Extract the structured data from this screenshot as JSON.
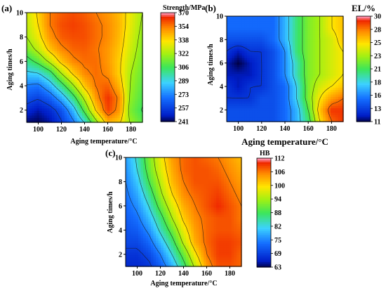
{
  "chart_data": [
    {
      "type": "heatmap",
      "panel_label": "(a)",
      "title": "Strength/MPa",
      "xlabel": "Aging temperature/°C",
      "ylabel": "Aging times/h",
      "xlim": [
        90,
        190
      ],
      "ylim": [
        1,
        10
      ],
      "xticks": [
        "100",
        "120",
        "140",
        "160",
        "180"
      ],
      "yticks": [
        "2",
        "4",
        "6",
        "8",
        "10"
      ],
      "colorbar": {
        "min": 241,
        "max": 370,
        "ticks": [
          "370",
          "354",
          "338",
          "322",
          "306",
          "289",
          "273",
          "257",
          "241"
        ]
      },
      "x": [
        90,
        100,
        110,
        120,
        130,
        140,
        150,
        160,
        170,
        180,
        190
      ],
      "y": [
        1,
        2,
        3,
        4,
        5,
        6,
        7,
        8,
        9,
        10
      ],
      "z": [
        [
          243,
          242,
          246,
          256,
          270,
          290,
          318,
          345,
          340,
          320,
          310
        ],
        [
          252,
          247,
          252,
          262,
          282,
          310,
          340,
          362,
          350,
          315,
          305
        ],
        [
          262,
          258,
          265,
          280,
          300,
          325,
          350,
          364,
          352,
          318,
          308
        ],
        [
          272,
          270,
          282,
          300,
          320,
          342,
          355,
          358,
          345,
          320,
          310
        ],
        [
          286,
          288,
          300,
          322,
          340,
          352,
          356,
          352,
          340,
          322,
          312
        ],
        [
          300,
          310,
          325,
          342,
          352,
          356,
          356,
          350,
          340,
          325,
          314
        ],
        [
          314,
          326,
          342,
          352,
          357,
          358,
          355,
          350,
          342,
          328,
          316
        ],
        [
          322,
          334,
          350,
          358,
          360,
          360,
          356,
          352,
          344,
          330,
          318
        ],
        [
          326,
          338,
          354,
          360,
          362,
          360,
          356,
          352,
          345,
          332,
          320
        ],
        [
          328,
          340,
          354,
          358,
          360,
          358,
          354,
          350,
          344,
          333,
          322
        ]
      ]
    },
    {
      "type": "heatmap",
      "panel_label": "(b)",
      "title": "EL/%",
      "xlabel": "Aging temperature/°C",
      "ylabel": "Aging times/h",
      "xlim": [
        90,
        190
      ],
      "ylim": [
        1,
        10
      ],
      "xticks": [
        "100",
        "120",
        "140",
        "160",
        "180"
      ],
      "yticks": [
        "2",
        "4",
        "6",
        "8",
        "10"
      ],
      "colorbar": {
        "min": 11,
        "max": 30,
        "ticks": [
          "30",
          "28",
          "25",
          "23",
          "21",
          "18",
          "16",
          "13",
          "11"
        ]
      },
      "x": [
        90,
        100,
        110,
        120,
        130,
        140,
        150,
        160,
        170,
        180,
        190
      ],
      "y": [
        1,
        2,
        3,
        4,
        5,
        6,
        7,
        8,
        9,
        10
      ],
      "z": [
        [
          14,
          14,
          14,
          14,
          14,
          15,
          17,
          20,
          25,
          28,
          29
        ],
        [
          14,
          14,
          14,
          14,
          14,
          15,
          17,
          21,
          26,
          29,
          29
        ],
        [
          13,
          13,
          13,
          14,
          14,
          15,
          18,
          22,
          25,
          27,
          28
        ],
        [
          13,
          12,
          13,
          13,
          14,
          15,
          18,
          22,
          24,
          25,
          26
        ],
        [
          12,
          12,
          12,
          13,
          14,
          16,
          19,
          22,
          23,
          24,
          25
        ],
        [
          12,
          11,
          12,
          13,
          14,
          16,
          19,
          22,
          23,
          24,
          25
        ],
        [
          13,
          12,
          13,
          13,
          14,
          16,
          20,
          22,
          23,
          24,
          25
        ],
        [
          14,
          14,
          14,
          14,
          15,
          17,
          20,
          22,
          23,
          24,
          26
        ],
        [
          15,
          15,
          15,
          15,
          15,
          17,
          20,
          22,
          23,
          25,
          26
        ],
        [
          15,
          15,
          15,
          15,
          15,
          17,
          20,
          22,
          23,
          25,
          26
        ]
      ]
    },
    {
      "type": "heatmap",
      "panel_label": "(c)",
      "title": "HB",
      "xlabel": "Aging temperature/°C",
      "ylabel": "Aging times/h",
      "xlim": [
        90,
        190
      ],
      "ylim": [
        1,
        10
      ],
      "xticks": [
        "100",
        "120",
        "140",
        "160",
        "180"
      ],
      "yticks": [
        "2",
        "4",
        "6",
        "8",
        "10"
      ],
      "colorbar": {
        "min": 63,
        "max": 112,
        "ticks": [
          "112",
          "106",
          "100",
          "94",
          "88",
          "82",
          "75",
          "69",
          "63"
        ]
      },
      "x": [
        90,
        100,
        110,
        120,
        130,
        140,
        150,
        160,
        170,
        180,
        190
      ],
      "y": [
        1,
        2,
        3,
        4,
        5,
        6,
        7,
        8,
        9,
        10
      ],
      "z": [
        [
          67,
          67,
          68,
          72,
          78,
          86,
          95,
          104,
          108,
          108,
          107
        ],
        [
          68,
          68,
          70,
          75,
          82,
          90,
          99,
          106,
          109,
          109,
          107
        ],
        [
          70,
          70,
          73,
          79,
          86,
          95,
          103,
          107,
          109,
          109,
          108
        ],
        [
          71,
          72,
          76,
          83,
          90,
          98,
          104,
          107,
          108,
          108,
          107
        ],
        [
          72,
          74,
          79,
          86,
          94,
          101,
          105,
          107,
          108,
          108,
          106
        ],
        [
          73,
          76,
          82,
          90,
          97,
          103,
          106,
          108,
          110,
          108,
          106
        ],
        [
          74,
          78,
          85,
          93,
          100,
          105,
          107,
          108,
          109,
          107,
          105
        ],
        [
          75,
          80,
          88,
          95,
          102,
          106,
          108,
          108,
          108,
          106,
          104
        ],
        [
          76,
          82,
          90,
          97,
          103,
          107,
          108,
          108,
          107,
          105,
          103
        ],
        [
          77,
          83,
          91,
          98,
          104,
          107,
          108,
          107,
          106,
          104,
          102
        ]
      ]
    }
  ]
}
